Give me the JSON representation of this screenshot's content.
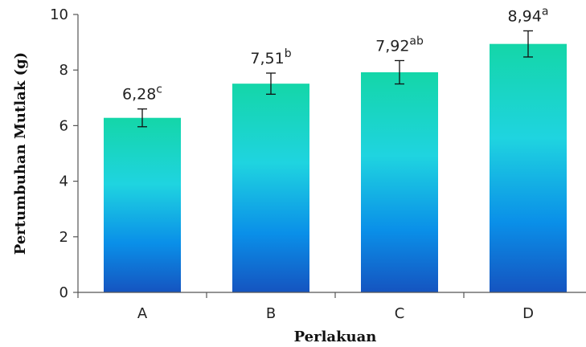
{
  "chart_data": {
    "type": "bar",
    "categories": [
      "A",
      "B",
      "C",
      "D"
    ],
    "values": [
      6.28,
      7.51,
      7.92,
      8.94
    ],
    "errors": [
      0.32,
      0.38,
      0.42,
      0.47
    ],
    "value_labels": [
      "6,28",
      "7,51",
      "7,92",
      "8,94"
    ],
    "letters": [
      "c",
      "b",
      "ab",
      "a"
    ],
    "xlabel": "Perlakuan",
    "ylabel": "Pertumbuhan Mutlak (g)",
    "ylim": [
      0,
      10
    ],
    "yticks": [
      0,
      2,
      4,
      6,
      8,
      10
    ],
    "grid": false,
    "legend": "none",
    "bar_gradient": [
      "#14d6a8",
      "#1fd4e0",
      "#0a8fe8",
      "#1554c0"
    ]
  }
}
